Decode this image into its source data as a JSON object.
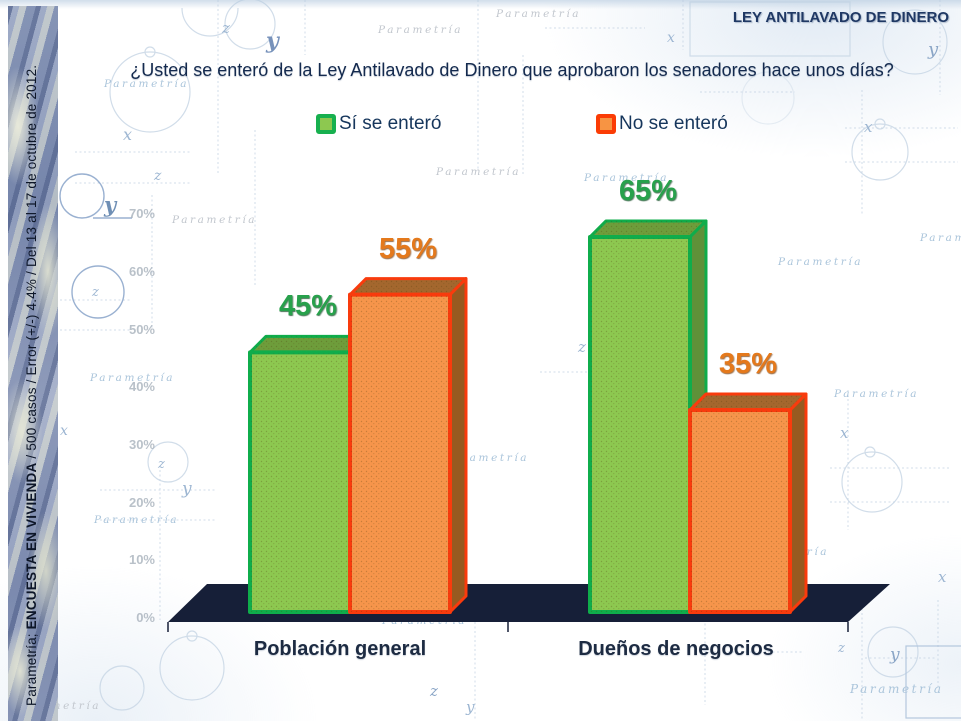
{
  "page": {
    "brand_title": "LEY ANTILAVADO DE DINERO",
    "question": "¿Usted se enteró de la Ley Antilavado de Dinero que aprobaron los senadores hace unos días?"
  },
  "legend": {
    "items": [
      {
        "label": "Sí se enteró"
      },
      {
        "label": "No se enteró"
      }
    ]
  },
  "sidebar": {
    "prefix": "Parametría; ",
    "study": "ENCUESTA EN VIVIENDA",
    "details": " / 500 casos / Error (+/-) 4.4% / Del 13 al 17 de octubre de 2012."
  },
  "watermark": {
    "text": "Parametría"
  },
  "chart_data": {
    "type": "bar",
    "title": "¿Usted se enteró de la Ley Antilavado de Dinero que aprobaron los senadores hace unos días?",
    "categories": [
      "Población general",
      "Dueños de negocios"
    ],
    "series": [
      {
        "name": "Sí se enteró",
        "values": [
          45,
          65
        ]
      },
      {
        "name": "No se enteró",
        "values": [
          55,
          35
        ]
      }
    ],
    "value_labels": [
      [
        "45%",
        "55%"
      ],
      [
        "65%",
        "35%"
      ]
    ],
    "y_ticks": [
      "70%",
      "60%",
      "50%",
      "40%",
      "30%",
      "20%",
      "10%",
      "0%"
    ],
    "ylim": [
      0,
      70
    ],
    "legend_position": "top",
    "grid": false,
    "style_3d": true
  },
  "chart_style": {
    "series": [
      {
        "front": "#8dc850",
        "border": "#0fad4b",
        "top": "#6e9d3b",
        "side": "#5f9139",
        "label_color": "#28a14c",
        "legend_outer": "#17b04f",
        "legend_inner": "#8dc850"
      },
      {
        "front": "#f6954b",
        "border": "#f93b0d",
        "top": "#a4672e",
        "side": "#975a20",
        "label_color": "#e4791c",
        "legend_outer": "#fb3c05",
        "legend_inner": "#f79443"
      }
    ],
    "platform_color": "#161f38",
    "text_navy": "#142a4e",
    "tick_label_color": "#a8b1bc"
  }
}
